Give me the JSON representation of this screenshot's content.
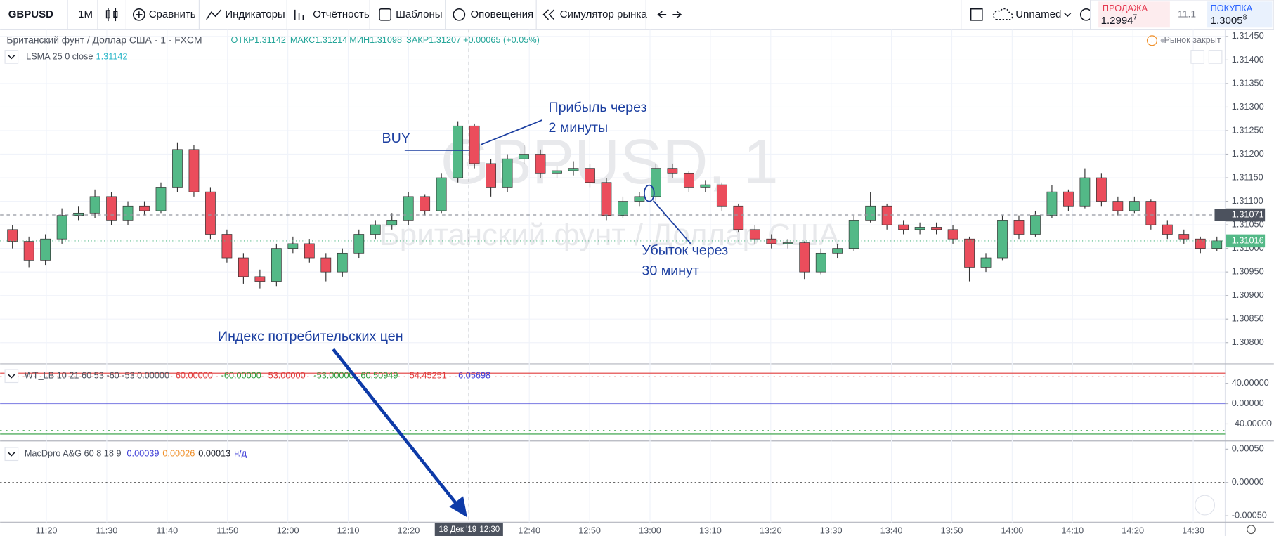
{
  "toolbar": {
    "symbol": "GBPUSD",
    "interval": "1M",
    "buttons": [
      "Сравнить",
      "Индикаторы",
      "Отчётность",
      "Шаблоны",
      "Оповещения",
      "Симулятор рынка"
    ],
    "layout_name": "Unnamed"
  },
  "quote": {
    "sell_label": "ПРОДАЖА",
    "sell_price": "1.2994",
    "sell_pip": "7",
    "spread": "11.1",
    "buy_label": "ПОКУПКА",
    "buy_price": "1.3005",
    "buy_pip": "8"
  },
  "legend": {
    "title": "Британский фунт / Доллар США · 1 · FXCM",
    "ohlc": [
      "ОТКР1.31142",
      "МАКС1.31214",
      "МИН1.31098",
      "ЗАКР1.31207"
    ],
    "change": "+0.00065 (+0.05%)",
    "status": "Рынок закрыт",
    "indicator": "LSMA 25 0 close",
    "indicator_value": "1.31142"
  },
  "watermark": {
    "symbol": "GBPUSD, 1",
    "name": "Британский фунт / Доллар США"
  },
  "price_pane": {
    "ylim": [
      1.30755,
      1.31467
    ],
    "yticks": [
      {
        "value": 1.3145,
        "label": "1.31450"
      },
      {
        "value": 1.314,
        "label": "1.31400"
      },
      {
        "value": 1.3135,
        "label": "1.31350"
      },
      {
        "value": 1.313,
        "label": "1.31300"
      },
      {
        "value": 1.3125,
        "label": "1.31250"
      },
      {
        "value": 1.312,
        "label": "1.31200"
      },
      {
        "value": 1.3115,
        "label": "1.31150"
      },
      {
        "value": 1.311,
        "label": "1.31100"
      },
      {
        "value": 1.3105,
        "label": "1.31050"
      },
      {
        "value": 1.31,
        "label": "1.31000"
      },
      {
        "value": 1.3095,
        "label": "1.30950"
      },
      {
        "value": 1.309,
        "label": "1.30900"
      },
      {
        "value": 1.3085,
        "label": "1.30850"
      },
      {
        "value": 1.308,
        "label": "1.30800"
      }
    ],
    "crosshair_price": 1.31071,
    "last_price": 1.31016,
    "up_color": "#53b987",
    "down_color": "#eb4d5c",
    "candles": [
      [
        1.3104,
        1.3105,
        1.31,
        1.31015
      ],
      [
        1.31015,
        1.31025,
        1.3096,
        1.30975
      ],
      [
        1.30975,
        1.3103,
        1.30965,
        1.3102
      ],
      [
        1.3102,
        1.31085,
        1.3101,
        1.3107
      ],
      [
        1.3107,
        1.3109,
        1.3106,
        1.31075
      ],
      [
        1.31075,
        1.31125,
        1.31065,
        1.3111
      ],
      [
        1.3111,
        1.3112,
        1.3105,
        1.3106
      ],
      [
        1.3106,
        1.311,
        1.3105,
        1.3109
      ],
      [
        1.3109,
        1.311,
        1.3107,
        1.3108
      ],
      [
        1.3108,
        1.3114,
        1.31075,
        1.3113
      ],
      [
        1.3113,
        1.31225,
        1.3112,
        1.3121
      ],
      [
        1.3121,
        1.3122,
        1.3111,
        1.3112
      ],
      [
        1.3112,
        1.3113,
        1.3102,
        1.3103
      ],
      [
        1.3103,
        1.3104,
        1.3097,
        1.3098
      ],
      [
        1.3098,
        1.3099,
        1.30925,
        1.3094
      ],
      [
        1.3094,
        1.30955,
        1.30915,
        1.3093
      ],
      [
        1.3093,
        1.3101,
        1.3092,
        1.31
      ],
      [
        1.31,
        1.31025,
        1.3099,
        1.3101
      ],
      [
        1.3101,
        1.3102,
        1.3097,
        1.3098
      ],
      [
        1.3098,
        1.3099,
        1.3093,
        1.3095
      ],
      [
        1.3095,
        1.31,
        1.3094,
        1.3099
      ],
      [
        1.3099,
        1.3104,
        1.3098,
        1.3103
      ],
      [
        1.3103,
        1.3106,
        1.3102,
        1.3105
      ],
      [
        1.3105,
        1.31075,
        1.3104,
        1.3106
      ],
      [
        1.3106,
        1.3112,
        1.3105,
        1.3111
      ],
      [
        1.3111,
        1.31115,
        1.3107,
        1.3108
      ],
      [
        1.3108,
        1.3116,
        1.31075,
        1.3115
      ],
      [
        1.3115,
        1.3127,
        1.3114,
        1.3126
      ],
      [
        1.3126,
        1.31265,
        1.3117,
        1.3118
      ],
      [
        1.3118,
        1.3119,
        1.3111,
        1.3113
      ],
      [
        1.3113,
        1.312,
        1.3112,
        1.3119
      ],
      [
        1.3119,
        1.3122,
        1.3118,
        1.312
      ],
      [
        1.312,
        1.3121,
        1.3115,
        1.3116
      ],
      [
        1.3116,
        1.31175,
        1.3115,
        1.31165
      ],
      [
        1.31165,
        1.31185,
        1.31155,
        1.3117
      ],
      [
        1.3117,
        1.3118,
        1.3113,
        1.3114
      ],
      [
        1.3114,
        1.3115,
        1.3106,
        1.3107
      ],
      [
        1.3107,
        1.3111,
        1.31065,
        1.311
      ],
      [
        1.311,
        1.3112,
        1.3109,
        1.3111
      ],
      [
        1.3111,
        1.3118,
        1.311,
        1.3117
      ],
      [
        1.3117,
        1.3118,
        1.3115,
        1.3116
      ],
      [
        1.3116,
        1.31165,
        1.3112,
        1.3113
      ],
      [
        1.3113,
        1.31145,
        1.3112,
        1.31135
      ],
      [
        1.31135,
        1.3114,
        1.3108,
        1.3109
      ],
      [
        1.3109,
        1.31095,
        1.31035,
        1.3104
      ],
      [
        1.3104,
        1.3105,
        1.3101,
        1.3102
      ],
      [
        1.3102,
        1.3103,
        1.31,
        1.3101
      ],
      [
        1.3101,
        1.3102,
        1.31,
        1.31012
      ],
      [
        1.31012,
        1.31015,
        1.30935,
        1.3095
      ],
      [
        1.3095,
        1.31,
        1.30945,
        1.3099
      ],
      [
        1.3099,
        1.3101,
        1.3098,
        1.31
      ],
      [
        1.31,
        1.3107,
        1.30995,
        1.3106
      ],
      [
        1.3106,
        1.3112,
        1.31055,
        1.3109
      ],
      [
        1.3109,
        1.31095,
        1.3104,
        1.3105
      ],
      [
        1.3105,
        1.3106,
        1.3103,
        1.3104
      ],
      [
        1.3104,
        1.31055,
        1.3103,
        1.31045
      ],
      [
        1.31045,
        1.31055,
        1.3103,
        1.3104
      ],
      [
        1.3104,
        1.3105,
        1.3101,
        1.3102
      ],
      [
        1.3102,
        1.31025,
        1.3093,
        1.3096
      ],
      [
        1.3096,
        1.3099,
        1.3095,
        1.3098
      ],
      [
        1.3098,
        1.3107,
        1.30975,
        1.3106
      ],
      [
        1.3106,
        1.3107,
        1.3102,
        1.3103
      ],
      [
        1.3103,
        1.3108,
        1.31025,
        1.3107
      ],
      [
        1.3107,
        1.31135,
        1.31065,
        1.3112
      ],
      [
        1.3112,
        1.31125,
        1.3108,
        1.3109
      ],
      [
        1.3109,
        1.3117,
        1.31085,
        1.3115
      ],
      [
        1.3115,
        1.3116,
        1.3109,
        1.311
      ],
      [
        1.311,
        1.3111,
        1.3107,
        1.3108
      ],
      [
        1.3108,
        1.3111,
        1.31075,
        1.311
      ],
      [
        1.311,
        1.31105,
        1.3104,
        1.3105
      ],
      [
        1.3105,
        1.3106,
        1.3102,
        1.3103
      ],
      [
        1.3103,
        1.3104,
        1.3101,
        1.3102
      ],
      [
        1.3102,
        1.31025,
        1.3099,
        1.31
      ],
      [
        1.31,
        1.31025,
        1.30995,
        1.31016
      ]
    ]
  },
  "wt_pane": {
    "title": "WT_LB 10 21 60 53 -60 -53 0.00000",
    "ylim": [
      -72,
      75.2
    ],
    "yticks": [
      {
        "value": 40,
        "label": "40.00000"
      },
      {
        "value": 0,
        "label": "0.00000"
      },
      {
        "value": -40,
        "label": "-40.00000"
      }
    ],
    "levels": [
      {
        "value": 60,
        "label": "60.00000",
        "color": "#e03c3c",
        "style": "solid"
      },
      {
        "value": -60,
        "label": "-60.00000",
        "color": "#2e9e3e",
        "style": "solid"
      },
      {
        "value": 53,
        "label": "53.00000",
        "color": "#e03c3c",
        "style": "dotted"
      },
      {
        "value": -53,
        "label": "-53.00000",
        "color": "#2e9e3e",
        "style": "dotted"
      }
    ],
    "readings": [
      {
        "label": "60.50949",
        "color": "#2e9e3e"
      },
      {
        "label": "54.45251",
        "color": "#e03c3c"
      },
      {
        "label": "6.05698",
        "color": "#3b3bd6"
      }
    ]
  },
  "macd_pane": {
    "title": "MacDpro A&G 60 8 18 9",
    "ylim": [
      -0.000585,
      0.000598
    ],
    "yticks": [
      {
        "value": 0.0005,
        "label": "0.00050"
      },
      {
        "value": 0,
        "label": "0.00000"
      },
      {
        "value": -0.0005,
        "label": "-0.00050"
      }
    ],
    "readings": [
      {
        "label": "0.00039",
        "color": "#3b3bd6"
      },
      {
        "label": "0.00026",
        "color": "#f0902a"
      },
      {
        "label": "0.00013",
        "color": "#131722"
      },
      {
        "label": "н/д",
        "color": "#3b3bd6"
      }
    ]
  },
  "time_axis": {
    "labels": [
      "11:20",
      "11:30",
      "11:40",
      "11:50",
      "12:00",
      "12:10",
      "12:20",
      null,
      "12:40",
      "12:50",
      "13:00",
      "13:10",
      "13:20",
      "13:30",
      "13:40",
      "13:50",
      "14:00",
      "14:10",
      "14:20",
      "14:30"
    ],
    "cursor_date": "18 Дек '19",
    "cursor_time": "12:30"
  },
  "annotations": {
    "buy": "BUY",
    "profit": [
      "Прибыль через",
      "2 минуты"
    ],
    "loss": [
      "Убыток через",
      "30 минут"
    ],
    "news": "Индекс потребительских цен"
  }
}
